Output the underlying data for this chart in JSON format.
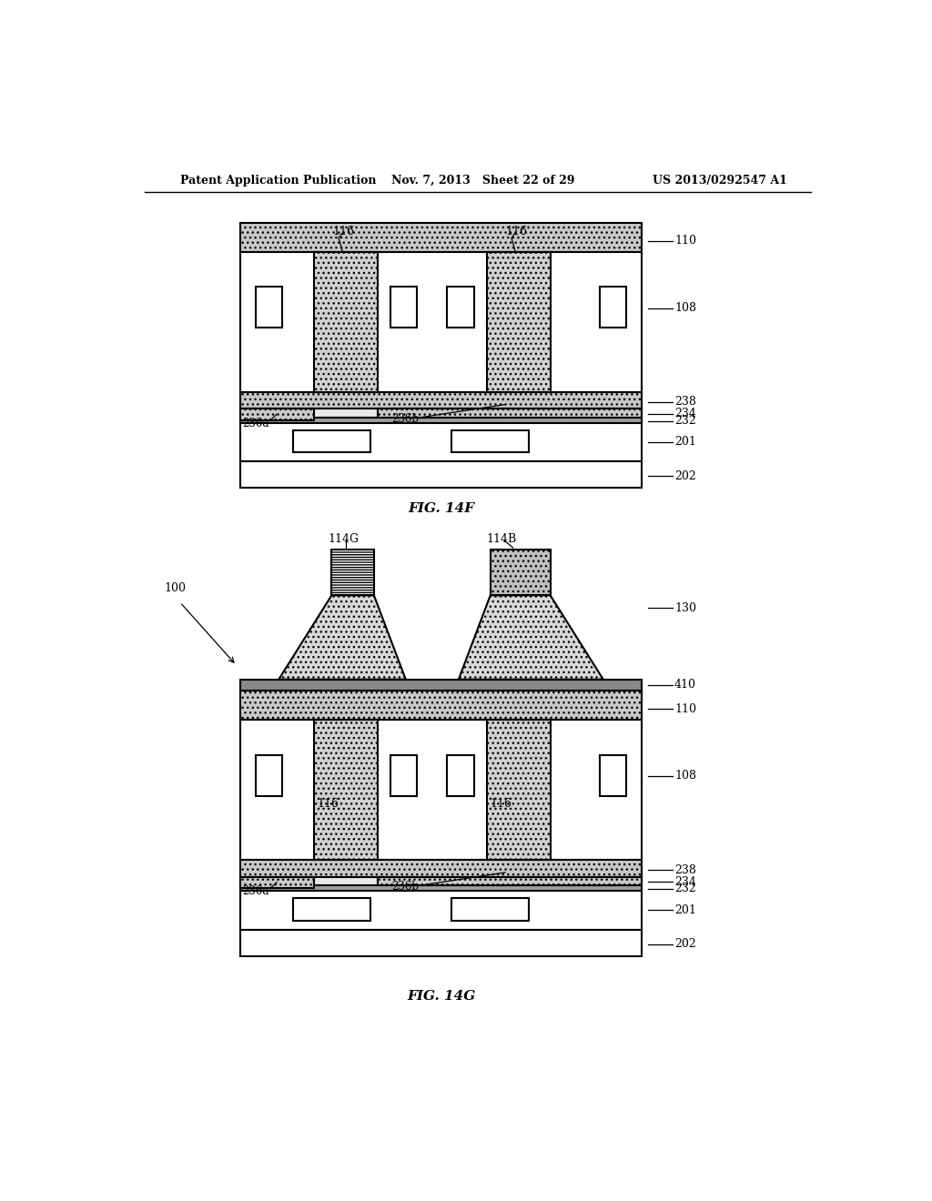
{
  "page_title_left": "Patent Application Publication",
  "page_title_mid": "Nov. 7, 2013   Sheet 22 of 29",
  "page_title_right": "US 2013/0292547 A1",
  "fig1_title": "FIG. 14F",
  "fig2_title": "FIG. 14G",
  "bg_color": "#ffffff"
}
